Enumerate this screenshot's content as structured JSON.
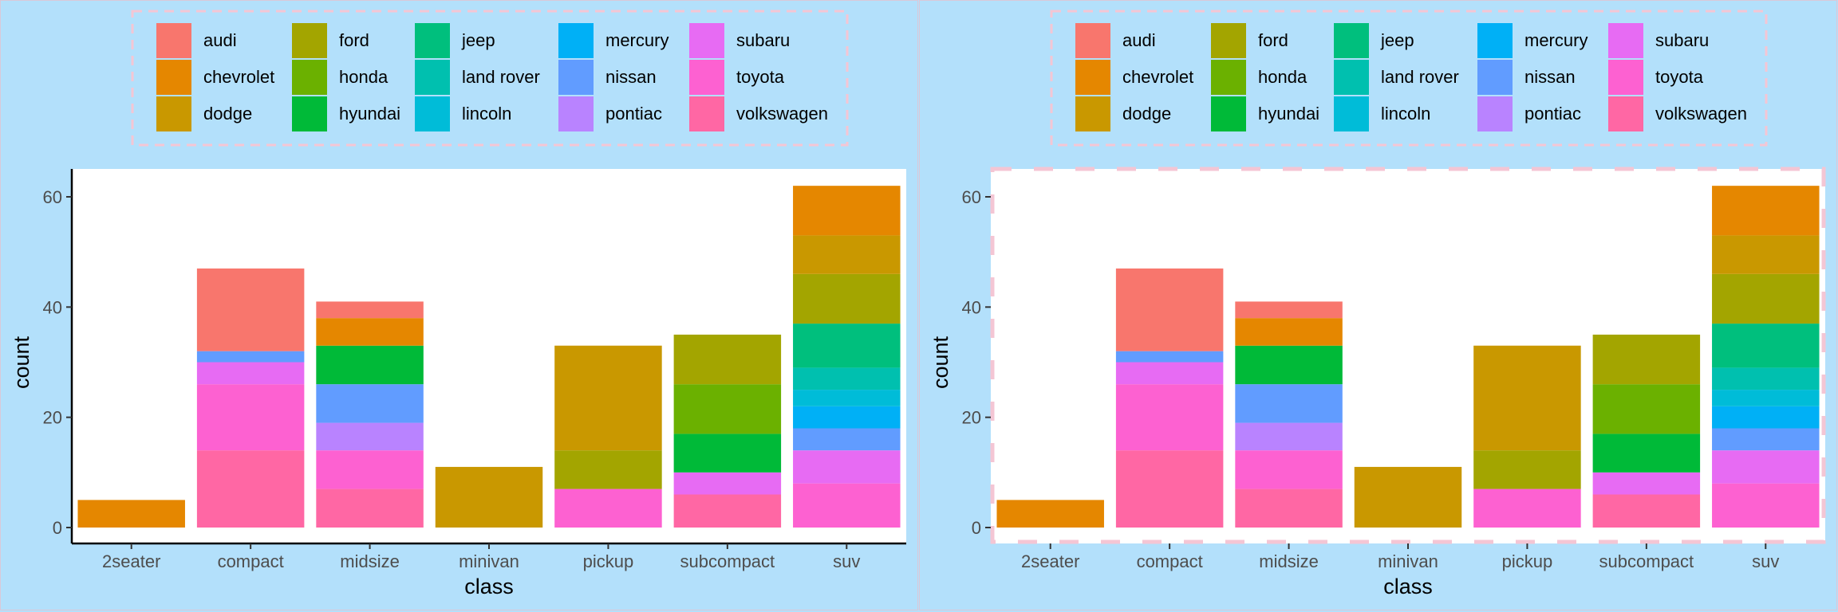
{
  "chart_data": {
    "type": "bar",
    "stacked": true,
    "xlabel": "class",
    "ylabel": "count",
    "categories": [
      "2seater",
      "compact",
      "midsize",
      "minivan",
      "pickup",
      "subcompact",
      "suv"
    ],
    "ylim": [
      0,
      65
    ],
    "yticks": [
      0,
      20,
      40,
      60
    ],
    "legend_position": "top",
    "manufacturers": [
      {
        "name": "audi",
        "color": "#F8766D"
      },
      {
        "name": "chevrolet",
        "color": "#E58700"
      },
      {
        "name": "dodge",
        "color": "#C99800"
      },
      {
        "name": "ford",
        "color": "#A3A500"
      },
      {
        "name": "honda",
        "color": "#6BB100"
      },
      {
        "name": "hyundai",
        "color": "#00BA38"
      },
      {
        "name": "jeep",
        "color": "#00BF7D"
      },
      {
        "name": "land rover",
        "color": "#00C0AF"
      },
      {
        "name": "lincoln",
        "color": "#00BCD8"
      },
      {
        "name": "mercury",
        "color": "#00B0F6"
      },
      {
        "name": "nissan",
        "color": "#619CFF"
      },
      {
        "name": "pontiac",
        "color": "#B983FF"
      },
      {
        "name": "subaru",
        "color": "#E76BF3"
      },
      {
        "name": "toyota",
        "color": "#FD61D1"
      },
      {
        "name": "volkswagen",
        "color": "#FF67A4"
      }
    ],
    "counts": {
      "2seater": {
        "chevrolet": 5
      },
      "compact": {
        "audi": 15,
        "nissan": 2,
        "subaru": 4,
        "toyota": 12,
        "volkswagen": 14
      },
      "midsize": {
        "audi": 3,
        "chevrolet": 5,
        "hyundai": 7,
        "nissan": 7,
        "pontiac": 5,
        "toyota": 7,
        "volkswagen": 7
      },
      "minivan": {
        "dodge": 11
      },
      "pickup": {
        "dodge": 19,
        "ford": 7,
        "toyota": 7
      },
      "subcompact": {
        "ford": 9,
        "honda": 9,
        "hyundai": 7,
        "subaru": 4,
        "volkswagen": 6
      },
      "suv": {
        "chevrolet": 9,
        "dodge": 7,
        "ford": 9,
        "jeep": 8,
        "land rover": 4,
        "lincoln": 3,
        "mercury": 4,
        "nissan": 4,
        "subaru": 6,
        "toyota": 8
      }
    }
  }
}
